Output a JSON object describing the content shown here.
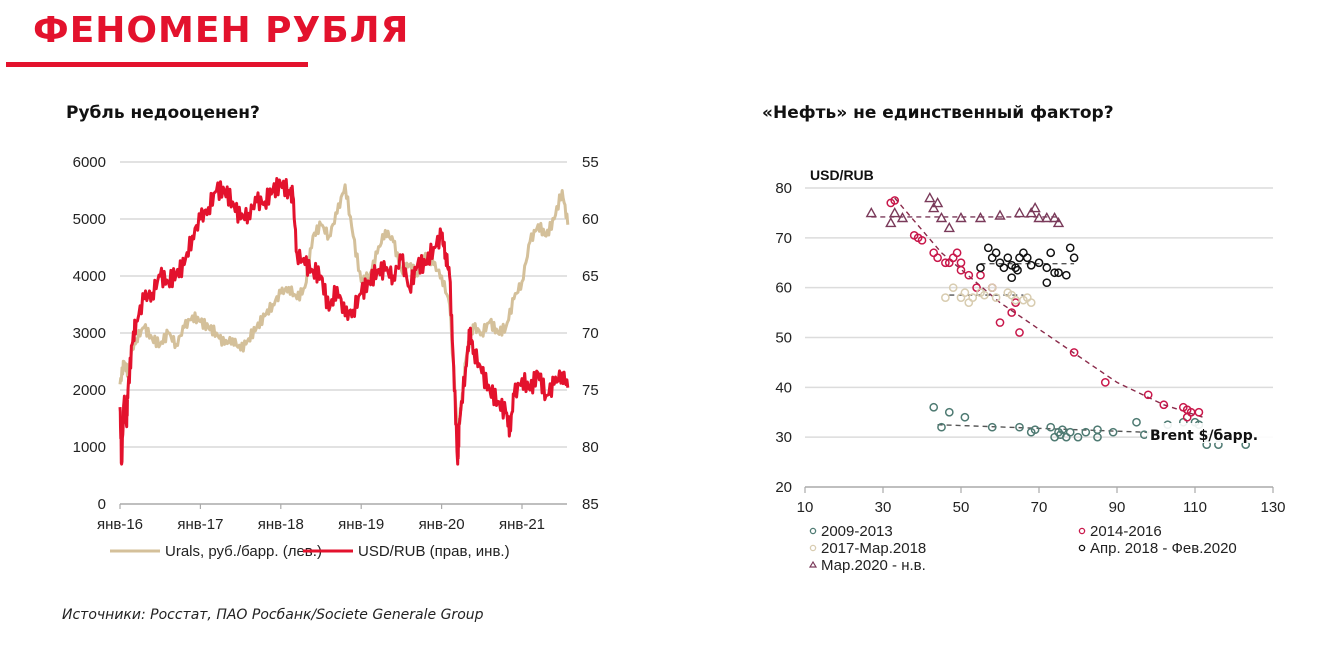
{
  "header": {
    "title": "ФЕНОМЕН РУБЛЯ",
    "accent_color": "#e3122d"
  },
  "footer": {
    "source": "Источники: Росстат, ПАО Росбанк/Societe Generale Group"
  },
  "chart_data": [
    {
      "id": "ruble-undervalued",
      "type": "line",
      "title": "Рубль недооценен?",
      "xlabel": "",
      "x_ticks": [
        "янв-16",
        "янв-17",
        "янв-18",
        "янв-19",
        "янв-20",
        "янв-21"
      ],
      "x_range": [
        2016.0,
        2021.57
      ],
      "y_left": {
        "label": "Urals, руб./барр.",
        "range": [
          0,
          6000
        ],
        "ticks": [
          "0",
          "1000",
          "2000",
          "3000",
          "4000",
          "5000",
          "6000"
        ]
      },
      "y_right": {
        "label": "USD/RUB (inverted)",
        "range": [
          85,
          55
        ],
        "inverted": true,
        "ticks": [
          "55",
          "60",
          "65",
          "70",
          "75",
          "80",
          "85"
        ]
      },
      "grid": true,
      "legend_position": "bottom",
      "series": [
        {
          "name": "Urals, руб./барр. (лев.)",
          "axis": "left",
          "color": "#d4c09a",
          "x": [
            2016.0,
            2016.05,
            2016.1,
            2016.15,
            2016.2,
            2016.3,
            2016.4,
            2016.5,
            2016.6,
            2016.7,
            2016.8,
            2016.9,
            2017.0,
            2017.1,
            2017.2,
            2017.3,
            2017.4,
            2017.5,
            2017.6,
            2017.7,
            2017.8,
            2017.9,
            2018.0,
            2018.1,
            2018.2,
            2018.3,
            2018.4,
            2018.5,
            2018.6,
            2018.7,
            2018.8,
            2018.9,
            2019.0,
            2019.1,
            2019.2,
            2019.3,
            2019.4,
            2019.5,
            2019.6,
            2019.7,
            2019.8,
            2019.9,
            2020.0,
            2020.1,
            2020.2,
            2020.25,
            2020.3,
            2020.35,
            2020.4,
            2020.5,
            2020.6,
            2020.7,
            2020.8,
            2020.9,
            2021.0,
            2021.1,
            2021.2,
            2021.3,
            2021.4,
            2021.5,
            2021.57
          ],
          "values": [
            2100,
            2500,
            2300,
            2700,
            2900,
            3100,
            2900,
            2800,
            3000,
            2800,
            3100,
            3300,
            3200,
            3100,
            3000,
            2800,
            2900,
            2700,
            2900,
            3100,
            3300,
            3500,
            3700,
            3800,
            3600,
            3800,
            4700,
            4900,
            4700,
            5100,
            5600,
            4700,
            3900,
            4000,
            4400,
            4800,
            4600,
            4100,
            4200,
            4000,
            4400,
            4200,
            4000,
            3500,
            1200,
            1800,
            2500,
            2900,
            3100,
            3000,
            3200,
            3000,
            3100,
            3600,
            3900,
            4600,
            4900,
            4700,
            5000,
            5500,
            4900
          ]
        },
        {
          "name": "USD/RUB (прав, инв.)",
          "axis": "right",
          "color": "#e3122d",
          "x": [
            2016.0,
            2016.02,
            2016.05,
            2016.08,
            2016.1,
            2016.15,
            2016.2,
            2016.3,
            2016.4,
            2016.5,
            2016.6,
            2016.7,
            2016.8,
            2016.9,
            2017.0,
            2017.1,
            2017.2,
            2017.3,
            2017.4,
            2017.5,
            2017.6,
            2017.7,
            2017.8,
            2017.9,
            2018.0,
            2018.1,
            2018.15,
            2018.2,
            2018.3,
            2018.4,
            2018.5,
            2018.6,
            2018.7,
            2018.8,
            2018.9,
            2019.0,
            2019.1,
            2019.2,
            2019.3,
            2019.4,
            2019.5,
            2019.6,
            2019.7,
            2019.8,
            2019.9,
            2020.0,
            2020.05,
            2020.1,
            2020.15,
            2020.2,
            2020.22,
            2020.3,
            2020.35,
            2020.4,
            2020.5,
            2020.6,
            2020.7,
            2020.8,
            2020.85,
            2020.9,
            2021.0,
            2021.1,
            2021.2,
            2021.3,
            2021.4,
            2021.5,
            2021.57
          ],
          "values": [
            76.5,
            81.5,
            76,
            78,
            75,
            71,
            69,
            67,
            66.5,
            65,
            65.5,
            64.8,
            64,
            61.5,
            60,
            59,
            57.5,
            57.5,
            58.5,
            60,
            59.5,
            58.5,
            58.5,
            57.5,
            57,
            57.5,
            58,
            63,
            64,
            64.5,
            65,
            68,
            66,
            68.5,
            68,
            66.5,
            65.5,
            64.5,
            64.5,
            65,
            63.5,
            66,
            64,
            64,
            62.5,
            61.5,
            63,
            65,
            73,
            81.5,
            78,
            73,
            70,
            71.5,
            73.5,
            75,
            76,
            77,
            78.5,
            75.5,
            74,
            75,
            73.5,
            75.5,
            74.5,
            73.5,
            74.8
          ]
        }
      ]
    },
    {
      "id": "oil-not-only-factor",
      "type": "scatter",
      "title": "«Нефть» не единственный  фактор?",
      "ylabel": "USD/RUB",
      "xlabel": "Brent $/барр.",
      "x_range": [
        10,
        130
      ],
      "y_range": [
        20,
        80
      ],
      "x_ticks": [
        "10",
        "30",
        "50",
        "70",
        "90",
        "110",
        "130"
      ],
      "y_ticks": [
        "20",
        "30",
        "40",
        "50",
        "60",
        "70",
        "80"
      ],
      "grid": true,
      "legend_position": "bottom",
      "series": [
        {
          "name": "2009-2013",
          "marker": "circle",
          "color": "#4e7a72",
          "points": [
            [
              43,
              36
            ],
            [
              47,
              35
            ],
            [
              51,
              34
            ],
            [
              45,
              32
            ],
            [
              58,
              32
            ],
            [
              65,
              32
            ],
            [
              68,
              31
            ],
            [
              69,
              31.5
            ],
            [
              73,
              32
            ],
            [
              74,
              30
            ],
            [
              75,
              31
            ],
            [
              75.5,
              30.5
            ],
            [
              76,
              31.5
            ],
            [
              77,
              30
            ],
            [
              78,
              31
            ],
            [
              80,
              30
            ],
            [
              82,
              31
            ],
            [
              85,
              31.5
            ],
            [
              85,
              30
            ],
            [
              89,
              31
            ],
            [
              95,
              33
            ],
            [
              97,
              30.5
            ],
            [
              103,
              32.5
            ],
            [
              107,
              33
            ],
            [
              110,
              33
            ],
            [
              111,
              32.5
            ],
            [
              113,
              28.5
            ],
            [
              116,
              28.5
            ],
            [
              123,
              28.5
            ]
          ],
          "trend": [
            [
              44,
              32.5
            ],
            [
              115,
              30.5
            ]
          ]
        },
        {
          "name": "2014-2016",
          "marker": "circle",
          "color": "#c8174a",
          "points": [
            [
              32,
              77
            ],
            [
              33,
              77.5
            ],
            [
              38,
              70.5
            ],
            [
              39,
              70
            ],
            [
              40,
              69.5
            ],
            [
              43,
              67
            ],
            [
              44,
              66
            ],
            [
              46,
              65
            ],
            [
              47,
              65
            ],
            [
              48,
              66
            ],
            [
              49,
              67
            ],
            [
              50,
              65
            ],
            [
              50,
              63.5
            ],
            [
              52,
              62.5
            ],
            [
              54,
              60
            ],
            [
              55,
              62.5
            ],
            [
              58,
              60
            ],
            [
              60,
              53
            ],
            [
              63,
              55
            ],
            [
              64,
              57
            ],
            [
              65,
              51
            ],
            [
              79,
              47
            ],
            [
              87,
              41
            ],
            [
              98,
              38.5
            ],
            [
              102,
              36.5
            ],
            [
              107,
              36
            ],
            [
              108,
              35.5
            ],
            [
              108,
              34
            ],
            [
              109,
              35
            ],
            [
              111,
              35
            ]
          ],
          "trend": [
            [
              33,
              78
            ],
            [
              45,
              67
            ],
            [
              60,
              57
            ],
            [
              75,
              49
            ],
            [
              90,
              41
            ],
            [
              102,
              36.5
            ],
            [
              112,
              34
            ]
          ]
        },
        {
          "name": "2017-Мар.2018",
          "marker": "circle",
          "color": "#d8ccb0",
          "points": [
            [
              46,
              58
            ],
            [
              48,
              60
            ],
            [
              50,
              58
            ],
            [
              51,
              59
            ],
            [
              52,
              57
            ],
            [
              53,
              58
            ],
            [
              55,
              59
            ],
            [
              56,
              58.5
            ],
            [
              58,
              60
            ],
            [
              59,
              58
            ],
            [
              62,
              59
            ],
            [
              63,
              58.5
            ],
            [
              64,
              57.5
            ],
            [
              66,
              57.5
            ],
            [
              67,
              58
            ],
            [
              68,
              57
            ]
          ],
          "trend": [
            [
              47,
              58.5
            ],
            [
              66,
              58.5
            ]
          ]
        },
        {
          "name": "Апр. 2018 - Фев.2020",
          "marker": "circle",
          "color": "#111111",
          "points": [
            [
              55,
              64
            ],
            [
              57,
              68
            ],
            [
              58,
              66
            ],
            [
              59,
              67
            ],
            [
              60,
              65
            ],
            [
              61,
              64
            ],
            [
              62,
              66
            ],
            [
              63,
              64.5
            ],
            [
              63,
              62
            ],
            [
              64,
              64
            ],
            [
              64.5,
              63.5
            ],
            [
              65,
              66
            ],
            [
              66,
              67
            ],
            [
              67,
              66
            ],
            [
              68,
              64.5
            ],
            [
              70,
              65
            ],
            [
              72,
              64
            ],
            [
              72,
              61
            ],
            [
              73,
              67
            ],
            [
              74,
              63
            ],
            [
              75,
              63
            ],
            [
              77,
              62.5
            ],
            [
              78,
              68
            ],
            [
              79,
              66
            ]
          ],
          "trend": [
            [
              55,
              64.8
            ],
            [
              79,
              64.8
            ]
          ]
        },
        {
          "name": "Мар.2020 - н.в.",
          "marker": "triangle",
          "color": "#7a3a5a",
          "points": [
            [
              27,
              75
            ],
            [
              32,
              73
            ],
            [
              33,
              75
            ],
            [
              35,
              74
            ],
            [
              42,
              78
            ],
            [
              43,
              76
            ],
            [
              44,
              77
            ],
            [
              45,
              74
            ],
            [
              47,
              72
            ],
            [
              50,
              74
            ],
            [
              55,
              74
            ],
            [
              60,
              74.5
            ],
            [
              65,
              75
            ],
            [
              68,
              75
            ],
            [
              69,
              76
            ],
            [
              70,
              74
            ],
            [
              72,
              74
            ],
            [
              74,
              74
            ],
            [
              75,
              73
            ]
          ],
          "trend": [
            [
              27,
              74.2
            ],
            [
              75,
              74.2
            ]
          ]
        }
      ]
    }
  ]
}
